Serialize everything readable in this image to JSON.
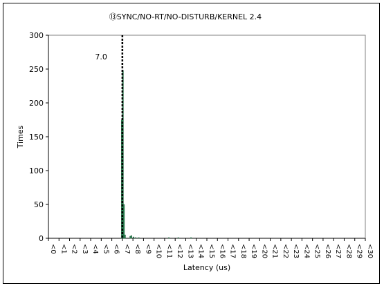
{
  "chart_data": {
    "type": "bar",
    "title": "⑬SYNC/NO-RT/NO-DISTURB/KERNEL 2.4",
    "xlabel": "Latency (us)",
    "ylabel": "Times",
    "ylim": [
      0,
      300
    ],
    "yticks": [
      0,
      50,
      100,
      150,
      200,
      250,
      300
    ],
    "xlim": [
      0,
      30
    ],
    "xtick_labels": [
      "<0",
      "<1",
      "<2",
      "<3",
      "<4",
      "<5",
      "<6",
      "<7",
      "<8",
      "<9",
      "<10",
      "<11",
      "<12",
      "<13",
      "<14",
      "<15",
      "<16",
      "<17",
      "<18",
      "<19",
      "<20",
      "<21",
      "<22",
      "<23",
      "<24",
      "<25",
      "<26",
      "<27",
      "<28",
      "<29",
      "<30"
    ],
    "bars": [
      {
        "x": 6.95,
        "y": 175
      },
      {
        "x": 7.05,
        "y": 248
      },
      {
        "x": 7.15,
        "y": 50
      },
      {
        "x": 7.25,
        "y": 5
      },
      {
        "x": 7.75,
        "y": 3
      },
      {
        "x": 7.85,
        "y": 4
      },
      {
        "x": 8.05,
        "y": 2
      },
      {
        "x": 8.25,
        "y": 1
      },
      {
        "x": 8.55,
        "y": 1
      },
      {
        "x": 11.4,
        "y": 1
      },
      {
        "x": 12.3,
        "y": 1
      },
      {
        "x": 13.5,
        "y": 1
      }
    ],
    "bar_color": "#2e8b57",
    "reference_line": {
      "x": 7.0,
      "label": "7.0",
      "style": "dashed"
    },
    "grid": false
  }
}
